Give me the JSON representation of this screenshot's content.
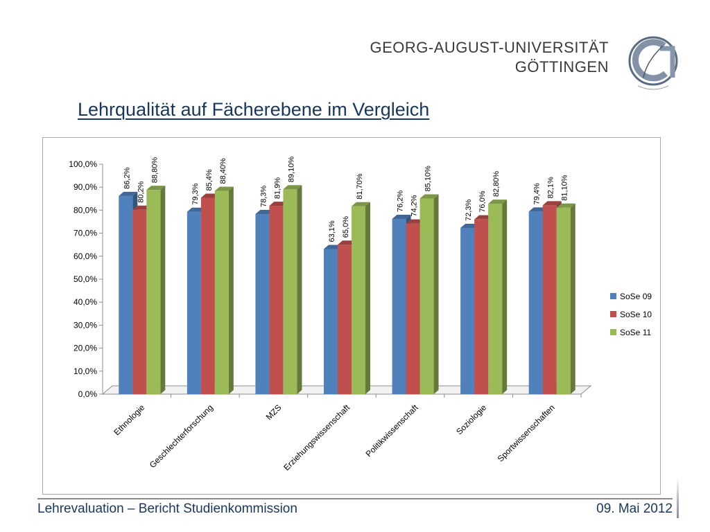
{
  "header": {
    "university_line1": "GEORG-AUGUST-UNIVERSITÄT",
    "university_line2": "GÖTTINGEN"
  },
  "slide": {
    "title": "Lehrqualität auf Fächerebene im Vergleich"
  },
  "footer": {
    "left": "Lehrevaluation – Bericht Studienkommission",
    "right": "09. Mai 2012"
  },
  "chart_data": {
    "type": "bar",
    "title": "",
    "xlabel": "",
    "ylabel": "",
    "ylim": [
      0,
      100
    ],
    "yticks": [
      "0,0%",
      "10,0%",
      "20,0%",
      "30,0%",
      "40,0%",
      "50,0%",
      "60,0%",
      "70,0%",
      "80,0%",
      "90,0%",
      "100,0%"
    ],
    "categories": [
      "Ethnologie",
      "Geschlechterforschung",
      "MZS",
      "Erziehungswissenschaft",
      "Politikwissenschaft",
      "Soziologie",
      "Sportwissenschaften"
    ],
    "legend_position": "right",
    "series": [
      {
        "name": "SoSe 09",
        "color": "#4f81bd",
        "values": [
          86.2,
          79.3,
          78.3,
          63.1,
          76.2,
          72.3,
          79.4
        ],
        "labels": [
          "86,2%",
          "79,3%",
          "78,3%",
          "63,1%",
          "76,2%",
          "72,3%",
          "79,4%"
        ]
      },
      {
        "name": "SoSe 10",
        "color": "#c0504d",
        "values": [
          80.2,
          85.4,
          81.9,
          65.0,
          74.2,
          76.0,
          82.1
        ],
        "labels": [
          "80,2%",
          "85,4%",
          "81,9%",
          "65,0%",
          "74,2%",
          "76,0%",
          "82,1%"
        ]
      },
      {
        "name": "SoSe 11",
        "color": "#9bbb59",
        "values": [
          88.8,
          88.4,
          89.1,
          81.7,
          85.1,
          82.8,
          81.1
        ],
        "labels": [
          "88,80%",
          "88,40%",
          "89,10%",
          "81,70%",
          "85,10%",
          "82,80%",
          "81,10%"
        ]
      }
    ]
  }
}
